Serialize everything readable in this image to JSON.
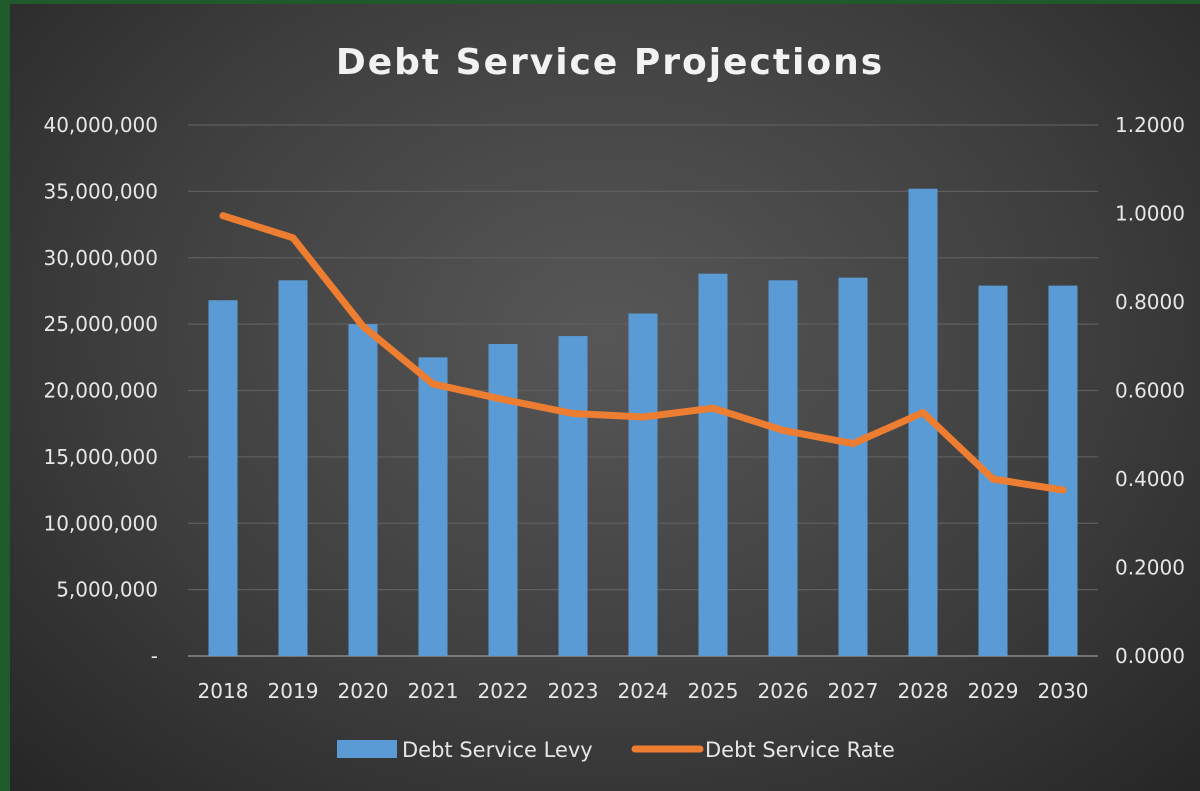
{
  "chart_data": {
    "type": "bar",
    "title": "Debt Service Projections",
    "xlabel": "",
    "ylabel": "",
    "categories": [
      "2018",
      "2019",
      "2020",
      "2021",
      "2022",
      "2023",
      "2024",
      "2025",
      "2026",
      "2027",
      "2028",
      "2029",
      "2030"
    ],
    "series": [
      {
        "name": "Debt Service Levy",
        "type": "bar",
        "axis": "left",
        "color": "#5b9bd5",
        "values": [
          26800000,
          28300000,
          25000000,
          22500000,
          23500000,
          24100000,
          25800000,
          28800000,
          28300000,
          28500000,
          35200000,
          27900000,
          27900000
        ]
      },
      {
        "name": "Debt Service Rate",
        "type": "line",
        "axis": "right",
        "color": "#ed7d31",
        "values": [
          0.995,
          0.945,
          0.745,
          0.615,
          0.58,
          0.548,
          0.54,
          0.56,
          0.51,
          0.48,
          0.55,
          0.4,
          0.375
        ]
      }
    ],
    "ylim_left": [
      0,
      40000000
    ],
    "ylim_right": [
      0,
      1.2
    ],
    "y_ticks_left": [
      "-",
      "5,000,000",
      "10,000,000",
      "15,000,000",
      "20,000,000",
      "25,000,000",
      "30,000,000",
      "35,000,000",
      "40,000,000"
    ],
    "y_ticks_right": [
      "0.0000",
      "0.2000",
      "0.4000",
      "0.6000",
      "0.8000",
      "1.0000",
      "1.2000"
    ],
    "grid": true,
    "legend_position": "bottom",
    "background_color": "#404040",
    "text_color": "#e6e6e6"
  }
}
